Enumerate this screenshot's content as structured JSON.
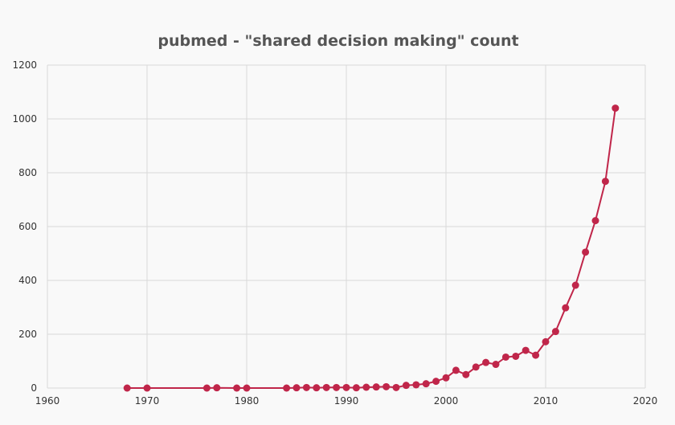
{
  "chart_data": {
    "type": "line",
    "title": "pubmed - \"shared decision making\" count",
    "xlabel": "",
    "ylabel": "",
    "xlim": [
      1960,
      2020
    ],
    "ylim": [
      0,
      1200
    ],
    "x_ticks": [
      "1960",
      "1970",
      "1980",
      "1990",
      "2000",
      "2010",
      "2020"
    ],
    "y_ticks": [
      "0",
      "200",
      "400",
      "600",
      "800",
      "1000",
      "1200"
    ],
    "grid": true,
    "legend": "none",
    "series": [
      {
        "color": "#c0264a",
        "x": [
          1968,
          1970,
          1976,
          1977,
          1979,
          1980,
          1984,
          1985,
          1986,
          1987,
          1988,
          1989,
          1990,
          1991,
          1992,
          1993,
          1994,
          1995,
          1996,
          1997,
          1998,
          1999,
          2000,
          2001,
          2002,
          2003,
          2004,
          2005,
          2006,
          2007,
          2008,
          2009,
          2010,
          2011,
          2012,
          2013,
          2014,
          2015,
          2016,
          2017
        ],
        "y": [
          0,
          0,
          0,
          1,
          0,
          0,
          0,
          1,
          2,
          1,
          2,
          2,
          2,
          1,
          3,
          4,
          5,
          2,
          10,
          12,
          16,
          25,
          38,
          66,
          50,
          78,
          95,
          88,
          115,
          118,
          140,
          122,
          172,
          210,
          298,
          382,
          505,
          622,
          768,
          1040
        ]
      }
    ]
  }
}
